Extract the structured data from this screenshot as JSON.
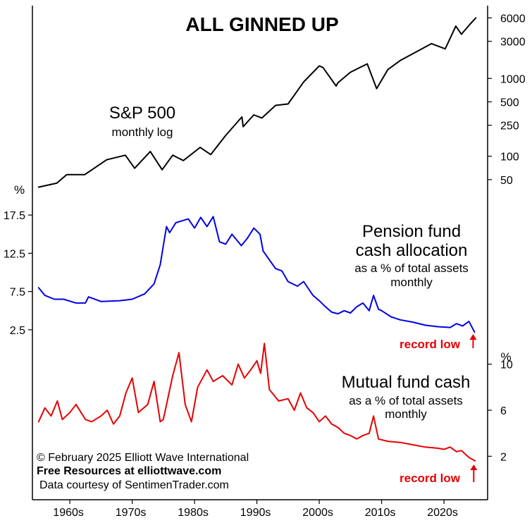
{
  "title": "ALL GINNED UP",
  "colors": {
    "sp500": "#000000",
    "pension": "#0000e6",
    "mutual": "#e60000",
    "record_low": "#e60000",
    "axis": "#000000"
  },
  "x_axis": {
    "tick_labels": [
      "1960s",
      "1970s",
      "1980s",
      "1990s",
      "2000s",
      "2010s",
      "2020s"
    ],
    "tick_years": [
      1960,
      1970,
      1980,
      1990,
      2000,
      2010,
      2020
    ],
    "range": [
      1954,
      2027
    ]
  },
  "annotations": {
    "copyright": "© February 2025  Elliott Wave International",
    "free_resources": "Free Resources at elliottwave.com",
    "data_courtesy": "Data courtesy of SentimenTrader.com"
  },
  "chart_data": [
    {
      "type": "line",
      "name": "sp500",
      "label": "S&P 500",
      "sublabel": "monthly log",
      "scale": "log",
      "ytick_labels": [
        "6000",
        "3000",
        "1000",
        "500",
        "250",
        "100",
        "50"
      ],
      "ytick_values": [
        6000,
        3000,
        1000,
        500,
        250,
        100,
        50
      ],
      "ylim": [
        38,
        7000
      ],
      "x": [
        1955.0,
        1957.9,
        1959.5,
        1962.4,
        1965.9,
        1968.9,
        1970.4,
        1972.9,
        1974.8,
        1976.5,
        1978.2,
        1980.9,
        1982.6,
        1985.0,
        1987.6,
        1987.8,
        1989.5,
        1990.8,
        1993.0,
        1995.0,
        1997.5,
        2000.0,
        2000.6,
        2002.7,
        2003.0,
        2005.0,
        2007.7,
        2009.2,
        2011.0,
        2013.0,
        2015.0,
        2018.0,
        2020.2,
        2021.9,
        2022.8,
        2024.0,
        2025.1
      ],
      "y": [
        40,
        45,
        58,
        58,
        90,
        103,
        70,
        115,
        67,
        103,
        88,
        130,
        105,
        185,
        320,
        240,
        340,
        310,
        450,
        470,
        900,
        1450,
        1380,
        800,
        880,
        1200,
        1540,
        740,
        1300,
        1700,
        2080,
        2800,
        2400,
        4700,
        3700,
        4800,
        6000
      ]
    },
    {
      "type": "line",
      "name": "pension",
      "label": "Pension fund",
      "label2": "cash allocation",
      "sublabel": "as a % of total assets",
      "sublabel2": "monthly",
      "unit": "%",
      "ytick_labels": [
        "17.5",
        "12.5",
        "7.5",
        "2.5"
      ],
      "ytick_values": [
        17.5,
        12.5,
        7.5,
        2.5
      ],
      "ylim": [
        0,
        20
      ],
      "x": [
        1955.0,
        1956.0,
        1957.5,
        1959.0,
        1961.0,
        1962.5,
        1963.0,
        1965.0,
        1968.0,
        1970.0,
        1972.0,
        1973.5,
        1974.5,
        1975.0,
        1975.5,
        1976.0,
        1977.0,
        1979.0,
        1980.0,
        1981.0,
        1982.0,
        1983.0,
        1984.0,
        1985.0,
        1986.0,
        1987.5,
        1988.5,
        1989.5,
        1990.5,
        1991.0,
        1993.0,
        1994.0,
        1995.0,
        1996.5,
        1997.5,
        1999.0,
        2000.0,
        2001.0,
        2002.0,
        2003.0,
        2004.0,
        2005.0,
        2006.0,
        2007.0,
        2008.0,
        2008.7,
        2009.5,
        2010.0,
        2011.5,
        2013.0,
        2015.0,
        2017.0,
        2019.0,
        2021.0,
        2022.0,
        2023.0,
        2024.0,
        2024.9
      ],
      "y": [
        8.0,
        7.0,
        6.5,
        6.5,
        6.0,
        6.0,
        6.8,
        6.2,
        6.3,
        6.5,
        7.2,
        8.5,
        11.0,
        13.5,
        16.0,
        15.2,
        16.5,
        17.0,
        15.8,
        17.2,
        16.0,
        17.3,
        14.0,
        13.7,
        15.0,
        13.5,
        14.5,
        15.8,
        15.0,
        12.8,
        10.5,
        10.2,
        8.8,
        8.2,
        8.8,
        7.0,
        6.3,
        5.5,
        4.8,
        4.6,
        5.0,
        4.7,
        5.5,
        6.0,
        5.0,
        7.0,
        5.2,
        5.0,
        4.2,
        3.8,
        3.5,
        3.1,
        2.9,
        2.8,
        3.3,
        3.0,
        3.6,
        2.2
      ],
      "annotation": "record low"
    },
    {
      "type": "line",
      "name": "mutual",
      "label": "Mutual fund cash",
      "sublabel": "as a % of total assets",
      "sublabel2": "monthly",
      "unit": "%",
      "ytick_labels": [
        "10",
        "6",
        "2"
      ],
      "ytick_values": [
        10,
        6,
        2
      ],
      "ylim": [
        0,
        12
      ],
      "x": [
        1955.0,
        1956.0,
        1957.0,
        1958.0,
        1958.8,
        1960.0,
        1961.0,
        1962.5,
        1963.5,
        1965.0,
        1966.0,
        1967.0,
        1968.0,
        1969.0,
        1970.0,
        1971.0,
        1972.5,
        1973.5,
        1974.5,
        1975.0,
        1976.5,
        1977.5,
        1978.5,
        1979.5,
        1980.5,
        1982.0,
        1983.0,
        1984.5,
        1986.0,
        1987.0,
        1988.0,
        1989.0,
        1990.0,
        1990.6,
        1991.2,
        1992.0,
        1993.5,
        1995.0,
        1996.0,
        1997.0,
        1998.0,
        1999.0,
        2000.0,
        2001.0,
        2002.0,
        2003.0,
        2004.0,
        2005.0,
        2006.0,
        2007.0,
        2008.0,
        2008.7,
        2009.5,
        2011.0,
        2013.0,
        2015.0,
        2017.0,
        2019.0,
        2020.0,
        2021.0,
        2022.0,
        2022.8,
        2024.0,
        2025.0
      ],
      "y": [
        5.0,
        6.2,
        5.5,
        6.8,
        5.2,
        5.8,
        6.5,
        5.2,
        5.0,
        5.5,
        6.0,
        4.8,
        5.5,
        7.5,
        8.8,
        5.8,
        6.5,
        8.5,
        5.0,
        5.2,
        9.0,
        11.0,
        6.5,
        5.0,
        8.0,
        9.5,
        8.5,
        9.0,
        8.2,
        10.0,
        8.8,
        9.5,
        10.3,
        9.2,
        11.8,
        7.8,
        6.8,
        7.0,
        6.0,
        7.5,
        6.2,
        5.8,
        5.0,
        5.5,
        4.8,
        4.5,
        4.0,
        3.8,
        3.5,
        3.8,
        4.0,
        5.5,
        3.5,
        3.3,
        3.2,
        3.0,
        2.8,
        2.7,
        2.6,
        2.8,
        2.4,
        2.5,
        1.9,
        1.6
      ],
      "annotation": "record low"
    }
  ]
}
